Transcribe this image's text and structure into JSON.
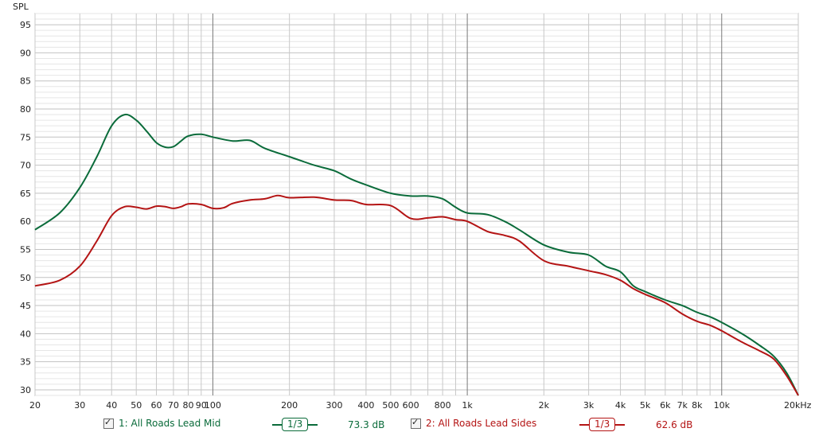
{
  "chart_data": {
    "type": "line",
    "ylabel": "SPL",
    "xscale": "log",
    "xlim": [
      20,
      20000
    ],
    "ylim": [
      29,
      97
    ],
    "yticks": [
      30,
      35,
      40,
      45,
      50,
      55,
      60,
      65,
      70,
      75,
      80,
      85,
      90,
      95
    ],
    "xtick_labels": [
      {
        "v": 20,
        "t": "20"
      },
      {
        "v": 30,
        "t": "30"
      },
      {
        "v": 40,
        "t": "40"
      },
      {
        "v": 50,
        "t": "50"
      },
      {
        "v": 60,
        "t": "60"
      },
      {
        "v": 70,
        "t": "70"
      },
      {
        "v": 80,
        "t": "80"
      },
      {
        "v": 90,
        "t": "90"
      },
      {
        "v": 100,
        "t": "100"
      },
      {
        "v": 200,
        "t": "200"
      },
      {
        "v": 300,
        "t": "300"
      },
      {
        "v": 400,
        "t": "400"
      },
      {
        "v": 500,
        "t": "500"
      },
      {
        "v": 600,
        "t": "600"
      },
      {
        "v": 800,
        "t": "800"
      },
      {
        "v": 1000,
        "t": "1k"
      },
      {
        "v": 2000,
        "t": "2k"
      },
      {
        "v": 3000,
        "t": "3k"
      },
      {
        "v": 4000,
        "t": "4k"
      },
      {
        "v": 5000,
        "t": "5k"
      },
      {
        "v": 6000,
        "t": "6k"
      },
      {
        "v": 7000,
        "t": "7k"
      },
      {
        "v": 8000,
        "t": "8k"
      },
      {
        "v": 10000,
        "t": "10k"
      },
      {
        "v": 20000,
        "t": "20kHz"
      }
    ],
    "grid": true,
    "series": [
      {
        "name": "1: All Roads Lead Mid",
        "color": "#0a6b3a",
        "points": [
          [
            20,
            58.5
          ],
          [
            25,
            61.5
          ],
          [
            30,
            66
          ],
          [
            35,
            71.5
          ],
          [
            40,
            77
          ],
          [
            45,
            79
          ],
          [
            50,
            78
          ],
          [
            55,
            76
          ],
          [
            60,
            74
          ],
          [
            65,
            73.2
          ],
          [
            70,
            73.3
          ],
          [
            75,
            74.3
          ],
          [
            80,
            75.2
          ],
          [
            90,
            75.5
          ],
          [
            100,
            75
          ],
          [
            120,
            74.3
          ],
          [
            140,
            74.4
          ],
          [
            160,
            73
          ],
          [
            200,
            71.5
          ],
          [
            250,
            70
          ],
          [
            300,
            69
          ],
          [
            350,
            67.5
          ],
          [
            400,
            66.5
          ],
          [
            500,
            65
          ],
          [
            600,
            64.5
          ],
          [
            700,
            64.5
          ],
          [
            800,
            64
          ],
          [
            900,
            62.5
          ],
          [
            1000,
            61.5
          ],
          [
            1200,
            61.2
          ],
          [
            1400,
            60
          ],
          [
            1600,
            58.5
          ],
          [
            2000,
            55.8
          ],
          [
            2500,
            54.5
          ],
          [
            3000,
            54
          ],
          [
            3500,
            52
          ],
          [
            4000,
            51
          ],
          [
            4500,
            48.5
          ],
          [
            5000,
            47.5
          ],
          [
            6000,
            46
          ],
          [
            7000,
            45
          ],
          [
            8000,
            43.8
          ],
          [
            9000,
            43
          ],
          [
            10000,
            42
          ],
          [
            12000,
            40
          ],
          [
            14000,
            38
          ],
          [
            16000,
            36
          ],
          [
            18000,
            33
          ],
          [
            20000,
            29
          ]
        ]
      },
      {
        "name": "2: All Roads Lead Sides",
        "color": "#b41414",
        "points": [
          [
            20,
            48.5
          ],
          [
            25,
            49.5
          ],
          [
            30,
            52
          ],
          [
            35,
            56.5
          ],
          [
            40,
            61
          ],
          [
            45,
            62.6
          ],
          [
            50,
            62.5
          ],
          [
            55,
            62.2
          ],
          [
            60,
            62.7
          ],
          [
            65,
            62.6
          ],
          [
            70,
            62.3
          ],
          [
            75,
            62.6
          ],
          [
            80,
            63.1
          ],
          [
            90,
            63
          ],
          [
            100,
            62.3
          ],
          [
            110,
            62.4
          ],
          [
            120,
            63.2
          ],
          [
            140,
            63.8
          ],
          [
            160,
            64
          ],
          [
            180,
            64.6
          ],
          [
            200,
            64.2
          ],
          [
            250,
            64.3
          ],
          [
            300,
            63.8
          ],
          [
            350,
            63.7
          ],
          [
            400,
            63
          ],
          [
            500,
            62.8
          ],
          [
            600,
            60.5
          ],
          [
            700,
            60.6
          ],
          [
            800,
            60.8
          ],
          [
            900,
            60.3
          ],
          [
            1000,
            60
          ],
          [
            1200,
            58.2
          ],
          [
            1400,
            57.5
          ],
          [
            1600,
            56.5
          ],
          [
            2000,
            53
          ],
          [
            2500,
            52
          ],
          [
            3000,
            51.2
          ],
          [
            3500,
            50.5
          ],
          [
            4000,
            49.5
          ],
          [
            4500,
            48
          ],
          [
            5000,
            47
          ],
          [
            6000,
            45.5
          ],
          [
            7000,
            43.5
          ],
          [
            8000,
            42.2
          ],
          [
            9000,
            41.5
          ],
          [
            10000,
            40.5
          ],
          [
            12000,
            38.5
          ],
          [
            14000,
            37
          ],
          [
            16000,
            35.5
          ],
          [
            18000,
            32.5
          ],
          [
            20000,
            29
          ]
        ]
      }
    ]
  },
  "legend": {
    "series1": {
      "label": "1: All Roads Lead Mid",
      "smoothing": "1/3",
      "value": "73.3 dB",
      "color": "#0a6b3a"
    },
    "series2": {
      "label": "2: All Roads Lead Sides",
      "smoothing": "1/3",
      "value": "62.6 dB",
      "color": "#b41414"
    }
  }
}
